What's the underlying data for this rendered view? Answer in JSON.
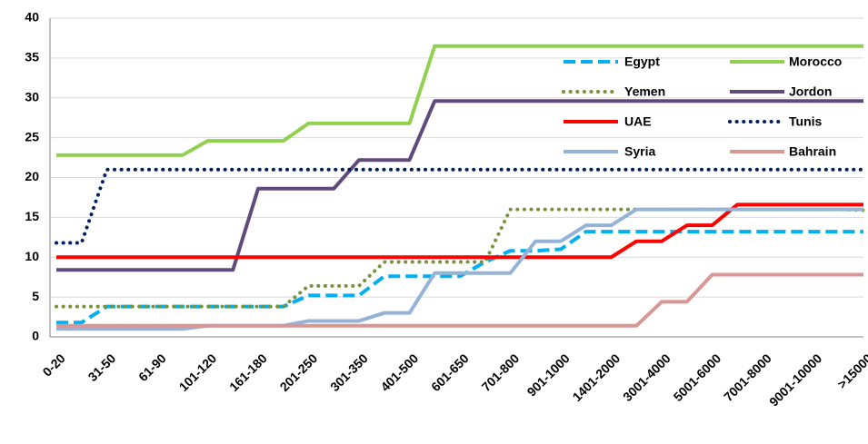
{
  "chart_data": {
    "type": "line",
    "categories": [
      "0-20",
      null,
      "31-50",
      null,
      "61-90",
      null,
      "101-120",
      null,
      "161-180",
      null,
      "201-250",
      null,
      "301-350",
      null,
      "401-500",
      null,
      "601-650",
      null,
      "701-800",
      null,
      "901-1000",
      null,
      "1401-2000",
      null,
      "3001-4000",
      null,
      "5001-6000",
      null,
      "7001-8000",
      null,
      "9001-10000",
      null,
      ">15000"
    ],
    "series": [
      {
        "name": "Egypt",
        "color": "#00b0f0",
        "dash": "dashed",
        "values": [
          1.8,
          1.8,
          3.8,
          3.8,
          3.8,
          3.8,
          3.8,
          3.8,
          3.8,
          3.8,
          5.2,
          5.2,
          5.2,
          7.6,
          7.6,
          7.6,
          7.6,
          9.4,
          10.8,
          10.8,
          11,
          13.2,
          13.2,
          13.2,
          13.2,
          13.2,
          13.2,
          13.2,
          13.2,
          13.2,
          13.2,
          13.2,
          13.2
        ]
      },
      {
        "name": "Morocco",
        "color": "#92d050",
        "dash": "solid",
        "values": [
          22.8,
          22.8,
          22.8,
          22.8,
          22.8,
          22.8,
          24.6,
          24.6,
          24.6,
          24.6,
          26.8,
          26.8,
          26.8,
          26.8,
          26.8,
          36.5,
          36.5,
          36.5,
          36.5,
          36.5,
          36.5,
          36.5,
          36.5,
          36.5,
          36.5,
          36.5,
          36.5,
          36.5,
          36.5,
          36.5,
          36.5,
          36.5,
          36.5
        ]
      },
      {
        "name": "Yemen",
        "color": "#77933c",
        "dash": "dotted",
        "values": [
          3.8,
          3.8,
          3.8,
          3.8,
          3.8,
          3.8,
          3.8,
          3.8,
          3.8,
          3.8,
          6.4,
          6.4,
          6.4,
          9.4,
          9.4,
          9.4,
          9.4,
          9.4,
          16,
          16,
          16,
          16,
          16,
          16,
          16,
          16,
          16,
          16,
          16,
          16,
          16,
          16,
          15.9
        ]
      },
      {
        "name": "Jordon",
        "color": "#604a7b",
        "dash": "solid",
        "values": [
          8.4,
          8.4,
          8.4,
          8.4,
          8.4,
          8.4,
          8.4,
          8.4,
          18.6,
          18.6,
          18.6,
          18.6,
          22.2,
          22.2,
          22.2,
          29.6,
          29.6,
          29.6,
          29.6,
          29.6,
          29.6,
          29.6,
          29.6,
          29.6,
          29.6,
          29.6,
          29.6,
          29.6,
          29.6,
          29.6,
          29.6,
          29.6,
          29.6
        ]
      },
      {
        "name": "UAE",
        "color": "#ff0000",
        "dash": "solid",
        "values": [
          10,
          10,
          10,
          10,
          10,
          10,
          10,
          10,
          10,
          10,
          10,
          10,
          10,
          10,
          10,
          10,
          10,
          10,
          10,
          10,
          10,
          10,
          10,
          12,
          12,
          14,
          14,
          16.6,
          16.6,
          16.6,
          16.6,
          16.6,
          16.6
        ]
      },
      {
        "name": "Tunis",
        "color": "#002060",
        "dash": "dotted",
        "values": [
          11.8,
          11.8,
          21,
          21,
          21,
          21,
          21,
          21,
          21,
          21,
          21,
          21,
          21,
          21,
          21,
          21,
          21,
          21,
          21,
          21,
          21,
          21,
          21,
          21,
          21,
          21,
          21,
          21,
          21,
          21,
          21,
          21,
          21
        ]
      },
      {
        "name": "Syria",
        "color": "#95b3d7",
        "dash": "solid",
        "values": [
          1,
          1,
          1,
          1,
          1,
          1,
          1.4,
          1.4,
          1.4,
          1.4,
          2,
          2,
          2,
          3,
          3,
          8,
          8,
          8,
          8,
          12,
          12,
          14,
          14,
          16,
          16,
          16,
          16,
          16,
          16,
          16,
          16,
          16,
          16
        ]
      },
      {
        "name": "Bahrain",
        "color": "#d99694",
        "dash": "solid",
        "values": [
          1.4,
          1.4,
          1.4,
          1.4,
          1.4,
          1.4,
          1.4,
          1.4,
          1.4,
          1.4,
          1.4,
          1.4,
          1.4,
          1.4,
          1.4,
          1.4,
          1.4,
          1.4,
          1.4,
          1.4,
          1.4,
          1.4,
          1.4,
          1.4,
          4.4,
          4.4,
          7.8,
          7.8,
          7.8,
          7.8,
          7.8,
          7.8,
          7.8
        ]
      }
    ],
    "ylim": [
      0,
      40
    ],
    "yticks": [
      0,
      5,
      10,
      15,
      20,
      25,
      30,
      35,
      40
    ],
    "grid": true,
    "legend": "upper right"
  }
}
